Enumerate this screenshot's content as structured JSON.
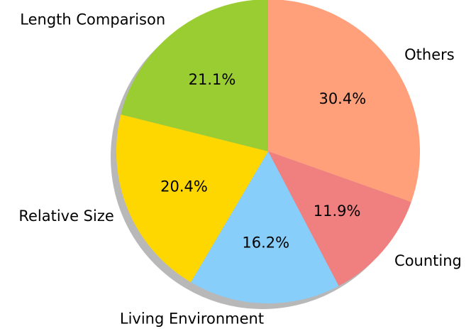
{
  "chart_data": {
    "type": "pie",
    "start_angle_deg": 90,
    "direction": "clockwise",
    "shadow": true,
    "slices": [
      {
        "label": "Others",
        "value": 30.4,
        "pct_label": "30.4%",
        "color": "#ffa07a"
      },
      {
        "label": "Counting",
        "value": 11.9,
        "pct_label": "11.9%",
        "color": "#f08080"
      },
      {
        "label": "Living Environment",
        "value": 16.2,
        "pct_label": "16.2%",
        "color": "#87cefa"
      },
      {
        "label": "Relative Size",
        "value": 20.4,
        "pct_label": "20.4%",
        "color": "#ffd700"
      },
      {
        "label": "Length Comparison",
        "value": 21.1,
        "pct_label": "21.1%",
        "color": "#9acd32"
      }
    ]
  }
}
